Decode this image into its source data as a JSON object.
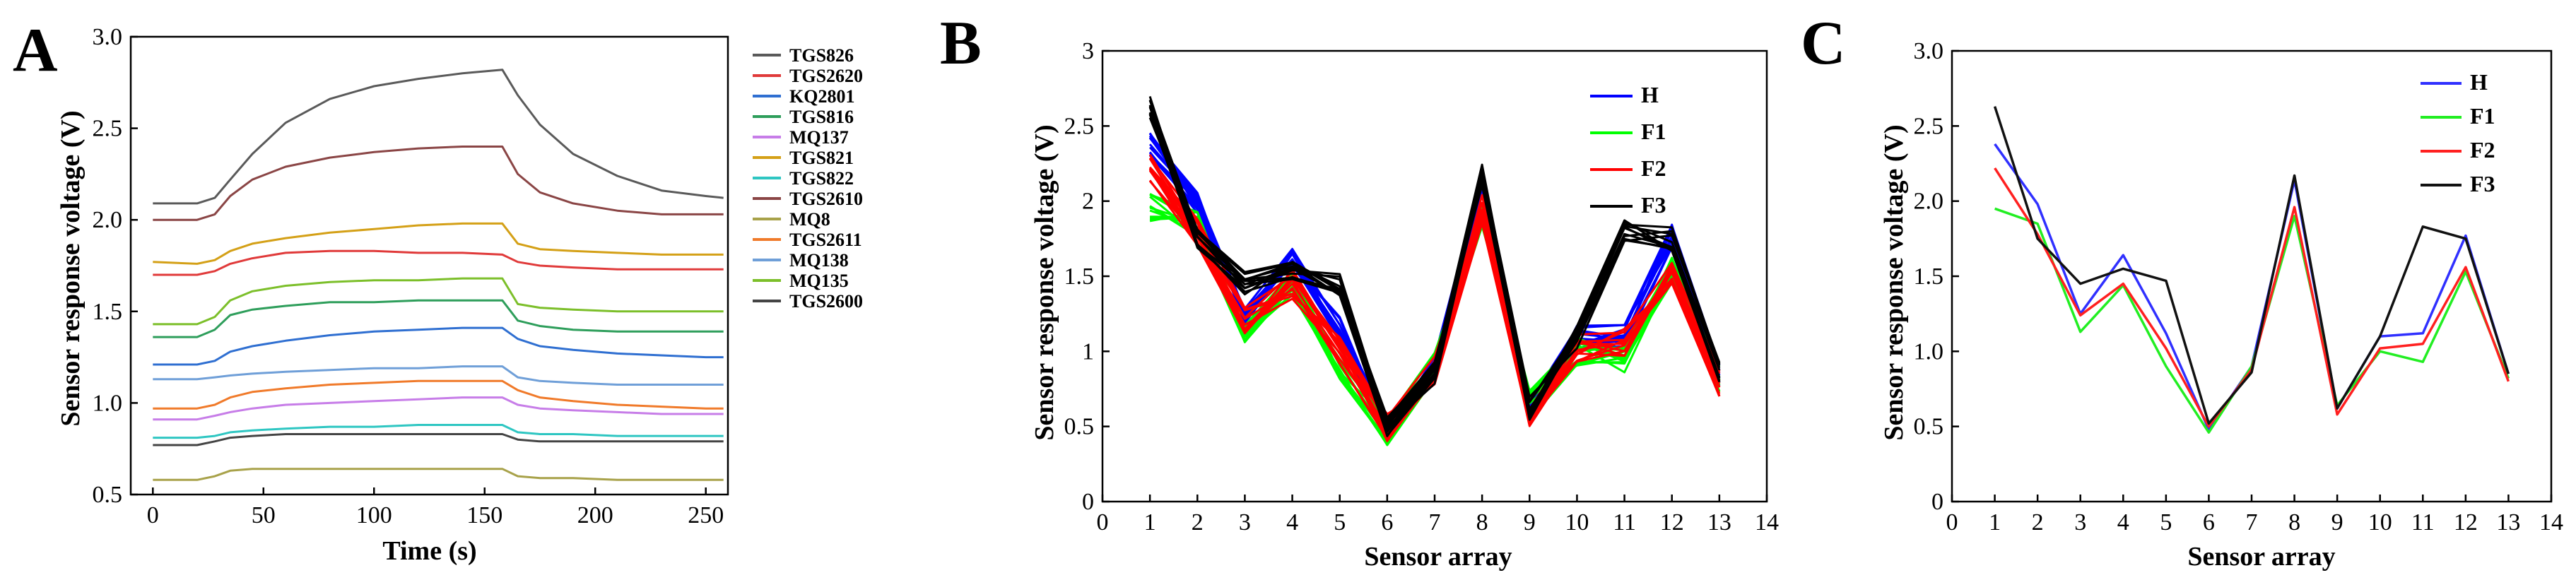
{
  "panels": {
    "A": {
      "letter": "A",
      "type": "line",
      "xlabel": "Time (s)",
      "ylabel": "Sensor response voltage (V)",
      "xlim": [
        -10,
        260
      ],
      "ylim": [
        0.5,
        3.0
      ],
      "xticks": [
        0,
        50,
        100,
        150,
        200,
        250
      ],
      "yticks": [
        0.5,
        1.0,
        1.5,
        2.0,
        2.5,
        3.0
      ],
      "ytick_labels": [
        "0.5",
        "1.0",
        "1.5",
        "2.0",
        "2.5",
        "3.0"
      ],
      "legend_position": "right-outside",
      "x": [
        0,
        20,
        28,
        35,
        45,
        60,
        80,
        100,
        120,
        140,
        158,
        165,
        175,
        190,
        210,
        230,
        250,
        258
      ],
      "series": [
        {
          "name": "TGS826",
          "color": "#5a5a5a",
          "values": [
            2.09,
            2.09,
            2.12,
            2.22,
            2.36,
            2.53,
            2.66,
            2.73,
            2.77,
            2.8,
            2.82,
            2.68,
            2.52,
            2.36,
            2.24,
            2.16,
            2.13,
            2.12
          ]
        },
        {
          "name": "TGS2620",
          "color": "#e03a3a",
          "values": [
            1.7,
            1.7,
            1.72,
            1.76,
            1.79,
            1.82,
            1.83,
            1.83,
            1.82,
            1.82,
            1.81,
            1.77,
            1.75,
            1.74,
            1.73,
            1.73,
            1.73,
            1.73
          ]
        },
        {
          "name": "KQ2801",
          "color": "#2f6fd1",
          "values": [
            1.21,
            1.21,
            1.23,
            1.28,
            1.31,
            1.34,
            1.37,
            1.39,
            1.4,
            1.41,
            1.41,
            1.35,
            1.31,
            1.29,
            1.27,
            1.26,
            1.25,
            1.25
          ]
        },
        {
          "name": "TGS816",
          "color": "#2e9e5b",
          "values": [
            1.36,
            1.36,
            1.4,
            1.48,
            1.51,
            1.53,
            1.55,
            1.55,
            1.56,
            1.56,
            1.56,
            1.45,
            1.42,
            1.4,
            1.39,
            1.39,
            1.39,
            1.39
          ]
        },
        {
          "name": "MQ137",
          "color": "#c77de8",
          "values": [
            0.91,
            0.91,
            0.93,
            0.95,
            0.97,
            0.99,
            1.0,
            1.01,
            1.02,
            1.03,
            1.03,
            0.99,
            0.97,
            0.96,
            0.95,
            0.94,
            0.94,
            0.94
          ]
        },
        {
          "name": "TGS821",
          "color": "#d4a017",
          "values": [
            1.77,
            1.76,
            1.78,
            1.83,
            1.87,
            1.9,
            1.93,
            1.95,
            1.97,
            1.98,
            1.98,
            1.87,
            1.84,
            1.83,
            1.82,
            1.81,
            1.81,
            1.81
          ]
        },
        {
          "name": "TGS822",
          "color": "#2ec6c2",
          "values": [
            0.81,
            0.81,
            0.82,
            0.84,
            0.85,
            0.86,
            0.87,
            0.87,
            0.88,
            0.88,
            0.88,
            0.84,
            0.83,
            0.83,
            0.82,
            0.82,
            0.82,
            0.82
          ]
        },
        {
          "name": "TGS2610",
          "color": "#8a4545",
          "values": [
            2.0,
            2.0,
            2.03,
            2.13,
            2.22,
            2.29,
            2.34,
            2.37,
            2.39,
            2.4,
            2.4,
            2.25,
            2.15,
            2.09,
            2.05,
            2.03,
            2.03,
            2.03
          ]
        },
        {
          "name": "MQ8",
          "color": "#a8a24a",
          "values": [
            0.58,
            0.58,
            0.6,
            0.63,
            0.64,
            0.64,
            0.64,
            0.64,
            0.64,
            0.64,
            0.64,
            0.6,
            0.59,
            0.59,
            0.58,
            0.58,
            0.58,
            0.58
          ]
        },
        {
          "name": "TGS2611",
          "color": "#f07a2a",
          "values": [
            0.97,
            0.97,
            0.99,
            1.03,
            1.06,
            1.08,
            1.1,
            1.11,
            1.12,
            1.12,
            1.12,
            1.07,
            1.03,
            1.01,
            0.99,
            0.98,
            0.97,
            0.97
          ]
        },
        {
          "name": "MQ138",
          "color": "#6f9fd8",
          "values": [
            1.13,
            1.13,
            1.14,
            1.15,
            1.16,
            1.17,
            1.18,
            1.19,
            1.19,
            1.2,
            1.2,
            1.14,
            1.12,
            1.11,
            1.1,
            1.1,
            1.1,
            1.1
          ]
        },
        {
          "name": "MQ135",
          "color": "#7cbf2a",
          "values": [
            1.43,
            1.43,
            1.47,
            1.56,
            1.61,
            1.64,
            1.66,
            1.67,
            1.67,
            1.68,
            1.68,
            1.54,
            1.52,
            1.51,
            1.5,
            1.5,
            1.5,
            1.5
          ]
        },
        {
          "name": "TGS2600",
          "color": "#444444",
          "values": [
            0.77,
            0.77,
            0.79,
            0.81,
            0.82,
            0.83,
            0.83,
            0.83,
            0.83,
            0.83,
            0.83,
            0.8,
            0.79,
            0.79,
            0.79,
            0.79,
            0.79,
            0.79
          ]
        }
      ]
    },
    "B": {
      "letter": "B",
      "type": "line",
      "xlabel": "Sensor array",
      "ylabel": "Sensor response voltage (V)",
      "xlim": [
        0,
        14
      ],
      "ylim": [
        0,
        3
      ],
      "xticks": [
        0,
        1,
        2,
        3,
        4,
        5,
        6,
        7,
        8,
        9,
        10,
        11,
        12,
        13,
        14
      ],
      "yticks": [
        0,
        0.5,
        1,
        1.5,
        2,
        2.5,
        3
      ],
      "ytick_labels": [
        "0",
        "0.5",
        "1",
        "1.5",
        "2",
        "2.5",
        "3"
      ],
      "legend_position": "top-right",
      "x": [
        1,
        2,
        3,
        4,
        5,
        6,
        7,
        8,
        9,
        10,
        11,
        12,
        13
      ],
      "groups": [
        {
          "name": "H",
          "color": "#0000ff",
          "base": [
            2.38,
            2.0,
            1.25,
            1.65,
            1.15,
            0.48,
            0.9,
            2.15,
            0.62,
            1.1,
            1.1,
            1.77,
            0.85
          ],
          "spread": 0.08
        },
        {
          "name": "F1",
          "color": "#00ff00",
          "base": [
            1.95,
            1.85,
            1.13,
            1.43,
            0.9,
            0.47,
            0.9,
            1.9,
            0.64,
            1.0,
            0.95,
            1.55,
            0.82
          ],
          "spread": 0.1
        },
        {
          "name": "F2",
          "color": "#ff0000",
          "base": [
            2.22,
            1.78,
            1.22,
            1.45,
            1.0,
            0.5,
            0.88,
            1.95,
            0.58,
            1.02,
            1.05,
            1.55,
            0.8
          ],
          "spread": 0.1
        },
        {
          "name": "F3",
          "color": "#000000",
          "base": [
            2.62,
            1.75,
            1.45,
            1.55,
            1.45,
            0.5,
            0.85,
            2.17,
            0.62,
            1.1,
            1.8,
            1.75,
            0.85
          ],
          "spread": 0.08
        }
      ],
      "replicates": 12
    },
    "C": {
      "letter": "C",
      "type": "line",
      "xlabel": "Sensor array",
      "ylabel": "Sensor response voltage (V)",
      "xlim": [
        0,
        14
      ],
      "ylim": [
        0,
        3.0
      ],
      "xticks": [
        0,
        1,
        2,
        3,
        4,
        5,
        6,
        7,
        8,
        9,
        10,
        11,
        12,
        13,
        14
      ],
      "yticks": [
        0,
        0.5,
        1.0,
        1.5,
        2.0,
        2.5,
        3.0
      ],
      "ytick_labels": [
        "0",
        "0.5",
        "1.0",
        "1.5",
        "2.0",
        "2.5",
        "3.0"
      ],
      "legend_position": "top-right",
      "x": [
        1,
        2,
        3,
        4,
        5,
        6,
        7,
        8,
        9,
        10,
        11,
        12,
        13
      ],
      "series": [
        {
          "name": "H",
          "color": "#3030ff",
          "values": [
            2.38,
            1.98,
            1.25,
            1.64,
            1.12,
            0.48,
            0.9,
            2.14,
            0.62,
            1.1,
            1.12,
            1.77,
            0.85
          ]
        },
        {
          "name": "F1",
          "color": "#22ee22",
          "values": [
            1.95,
            1.85,
            1.13,
            1.44,
            0.9,
            0.46,
            0.9,
            1.9,
            0.64,
            1.0,
            0.93,
            1.53,
            0.82
          ]
        },
        {
          "name": "F2",
          "color": "#ff2020",
          "values": [
            2.22,
            1.78,
            1.24,
            1.45,
            1.02,
            0.5,
            0.88,
            1.96,
            0.58,
            1.02,
            1.05,
            1.56,
            0.8
          ]
        },
        {
          "name": "F3",
          "color": "#111111",
          "values": [
            2.63,
            1.75,
            1.45,
            1.55,
            1.47,
            0.52,
            0.86,
            2.17,
            0.62,
            1.1,
            1.83,
            1.75,
            0.85
          ]
        }
      ]
    }
  }
}
